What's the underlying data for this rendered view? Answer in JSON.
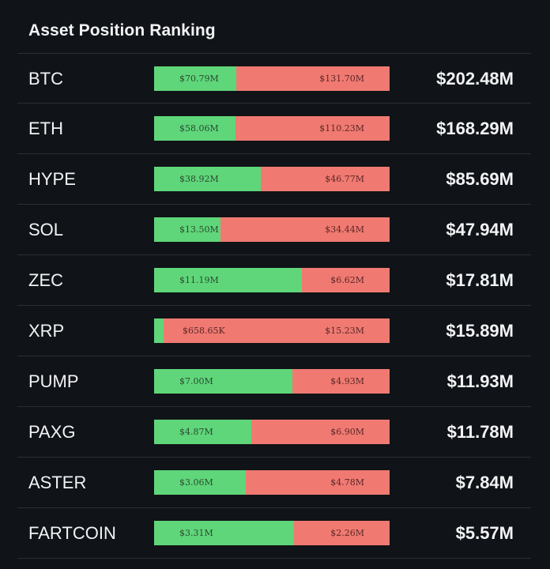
{
  "title": "Asset Position Ranking",
  "colors": {
    "background": "#101317",
    "long": "#5fd67a",
    "short": "#f07a72",
    "divider": "#2a2e35",
    "text": "#f2f3f5"
  },
  "chart_data": {
    "type": "bar",
    "title": "Asset Position Ranking",
    "categories": [
      "BTC",
      "ETH",
      "HYPE",
      "SOL",
      "ZEC",
      "XRP",
      "PUMP",
      "PAXG",
      "ASTER",
      "FARTCOIN"
    ],
    "series": [
      {
        "values": [
          70.79,
          58.06,
          38.92,
          13.5,
          11.19,
          0.65865,
          7.0,
          4.87,
          3.06,
          3.31
        ]
      },
      {
        "values": [
          131.7,
          110.23,
          46.77,
          34.44,
          6.62,
          15.23,
          4.93,
          6.9,
          4.78,
          2.26
        ]
      }
    ],
    "stacked": true,
    "normalized": true,
    "rows": [
      {
        "asset": "BTC",
        "long_label": "$70.79M",
        "short_label": "$131.70M",
        "long": 70.79,
        "short": 131.7,
        "total_label": "$202.48M"
      },
      {
        "asset": "ETH",
        "long_label": "$58.06M",
        "short_label": "$110.23M",
        "long": 58.06,
        "short": 110.23,
        "total_label": "$168.29M"
      },
      {
        "asset": "HYPE",
        "long_label": "$38.92M",
        "short_label": "$46.77M",
        "long": 38.92,
        "short": 46.77,
        "total_label": "$85.69M"
      },
      {
        "asset": "SOL",
        "long_label": "$13.50M",
        "short_label": "$34.44M",
        "long": 13.5,
        "short": 34.44,
        "total_label": "$47.94M"
      },
      {
        "asset": "ZEC",
        "long_label": "$11.19M",
        "short_label": "$6.62M",
        "long": 11.19,
        "short": 6.62,
        "total_label": "$17.81M"
      },
      {
        "asset": "XRP",
        "long_label": "",
        "short_label": "$15.23M",
        "mid_label": "$658.65K",
        "long": 0.65865,
        "short": 15.23,
        "total_label": "$15.89M"
      },
      {
        "asset": "PUMP",
        "long_label": "$7.00M",
        "short_label": "$4.93M",
        "long": 7.0,
        "short": 4.93,
        "total_label": "$11.93M"
      },
      {
        "asset": "PAXG",
        "long_label": "$4.87M",
        "short_label": "$6.90M",
        "long": 4.87,
        "short": 6.9,
        "total_label": "$11.78M"
      },
      {
        "asset": "ASTER",
        "long_label": "$3.06M",
        "short_label": "$4.78M",
        "long": 3.06,
        "short": 4.78,
        "total_label": "$7.84M"
      },
      {
        "asset": "FARTCOIN",
        "long_label": "$3.31M",
        "short_label": "$2.26M",
        "long": 3.31,
        "short": 2.26,
        "total_label": "$5.57M"
      }
    ]
  }
}
